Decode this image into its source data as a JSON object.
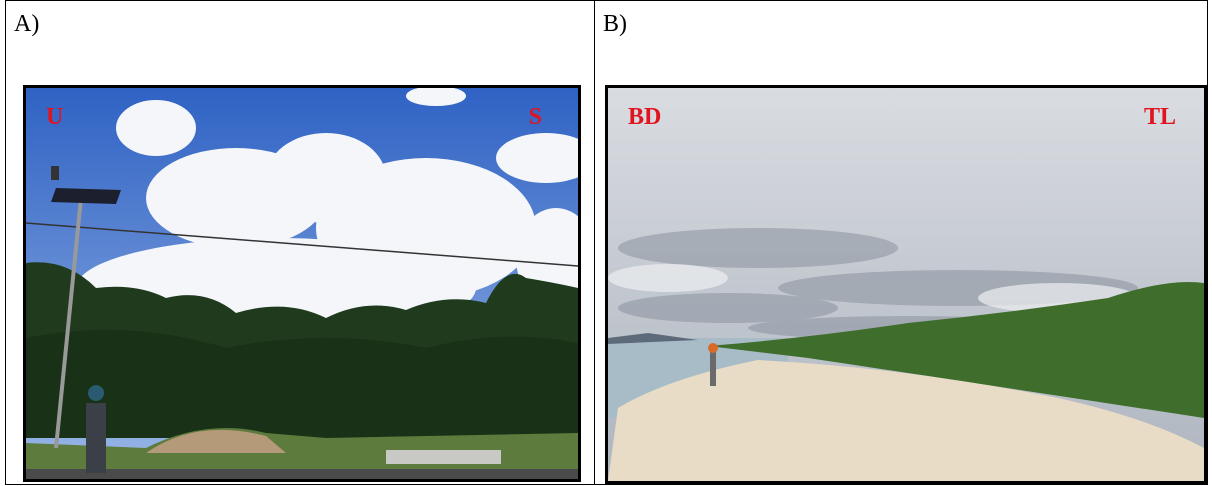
{
  "panels": [
    {
      "label": "A)",
      "photo": {
        "left_tag": "U",
        "right_tag": "S"
      }
    },
    {
      "label": "B)",
      "photo": {
        "left_tag": "BD",
        "right_tag": "TL"
      }
    }
  ]
}
